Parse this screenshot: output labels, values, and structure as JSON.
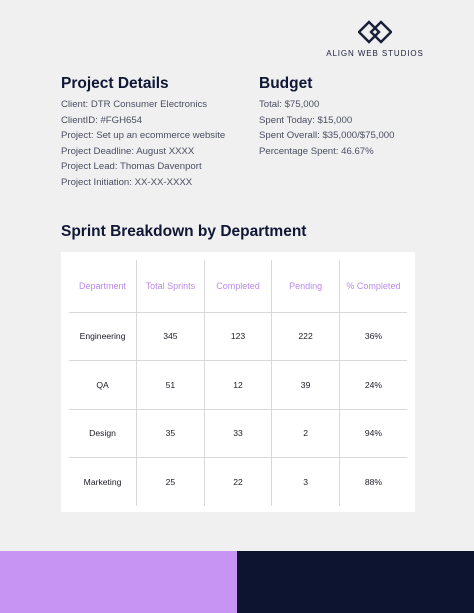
{
  "brand": {
    "name": "ALIGN WEB STUDIOS",
    "logo_icon": "interlocked-diamonds-icon"
  },
  "project_details": {
    "title": "Project Details",
    "items": [
      "Client: DTR Consumer Electronics",
      "ClientID: #FGH654",
      "Project: Set up an ecommerce website",
      "Project Deadline: August XXXX",
      "Project Lead: Thomas Davenport",
      "Project Initiation: XX-XX-XXXX"
    ]
  },
  "budget": {
    "title": "Budget",
    "items": [
      "Total: $75,000",
      "Spent Today: $15,000",
      "Spent Overall: $35,000/$75,000",
      "Percentage Spent: 46.67%"
    ]
  },
  "sprint": {
    "title": "Sprint Breakdown by Department",
    "headers": [
      "Department",
      "Total Sprints",
      "Completed",
      "Pending",
      "% Completed"
    ],
    "rows": [
      [
        "Engineering",
        "345",
        "123",
        "222",
        "36%"
      ],
      [
        "QA",
        "51",
        "12",
        "39",
        "24%"
      ],
      [
        "Design",
        "35",
        "33",
        "2",
        "94%"
      ],
      [
        "Marketing",
        "25",
        "22",
        "3",
        "88%"
      ]
    ]
  },
  "colors": {
    "accent": "#c794f4",
    "header_text": "#b98be8",
    "navy": "#0c1430",
    "background": "#f0f0f1"
  }
}
